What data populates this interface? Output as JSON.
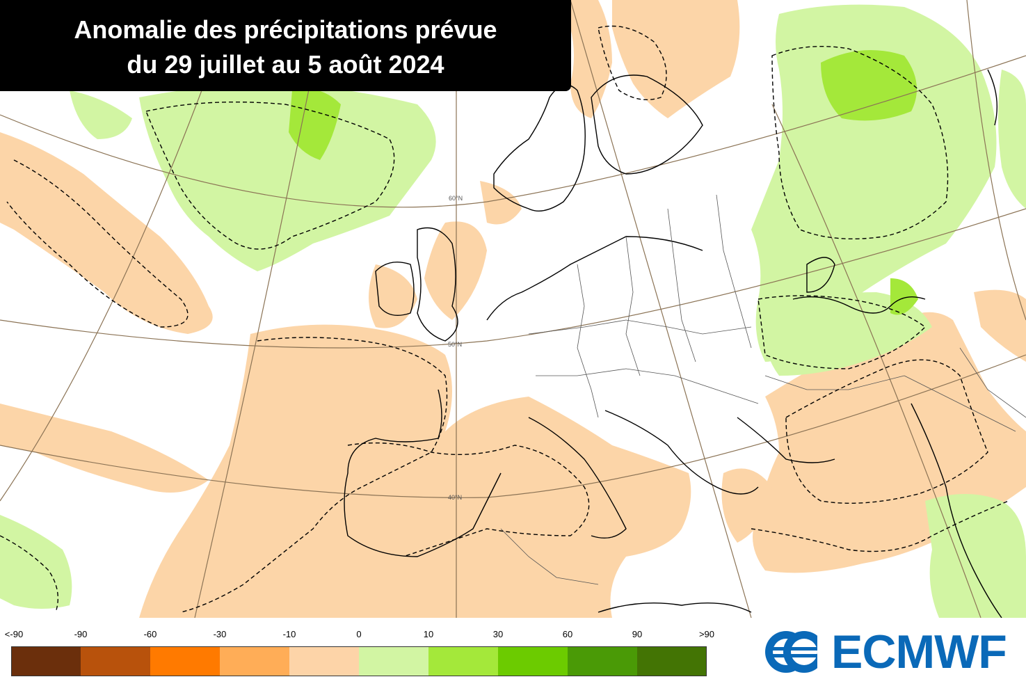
{
  "title": {
    "line1": "Anomalie des précipitations prévue",
    "line2": "du 29 juillet au 5 août 2024"
  },
  "graticule_labels": [
    "60°N",
    "50°N",
    "40°N"
  ],
  "legend": {
    "labels": [
      "<-90",
      "-90",
      "-60",
      "-30",
      "-10",
      "0",
      "10",
      "30",
      "60",
      "90",
      ">90"
    ],
    "colors": [
      "#6b2f0c",
      "#b8520c",
      "#ff7a00",
      "#ffad57",
      "#fdd4a8",
      "#d2f5a3",
      "#a4e83a",
      "#6ccb00",
      "#4a9a06",
      "#437404"
    ]
  },
  "logo": {
    "text": "ECMWF",
    "icon": "ecmwf-logo-icon",
    "color": "#0a69b8"
  },
  "map_colors": {
    "dry": "#fcd5a8",
    "wet": "#d2f5a3",
    "very_wet": "#a4e83a",
    "coast": "#000000",
    "graticule": "#8b7355"
  }
}
